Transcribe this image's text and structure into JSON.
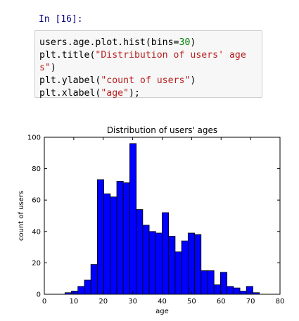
{
  "cell": {
    "prompt": "In [16]:",
    "lines": [
      [
        {
          "t": "users.age.plot.hist(bins=",
          "c": ""
        },
        {
          "t": "30",
          "c": "n"
        },
        {
          "t": ")",
          "c": ""
        }
      ],
      [
        {
          "t": "plt.title(",
          "c": ""
        },
        {
          "t": "\"Distribution of users' age",
          "c": "s"
        }
      ],
      [
        {
          "t": "s\"",
          "c": "s"
        },
        {
          "t": ")",
          "c": ""
        }
      ],
      [
        {
          "t": "plt.ylabel(",
          "c": ""
        },
        {
          "t": "\"count of users\"",
          "c": "s"
        },
        {
          "t": ")",
          "c": ""
        }
      ],
      [
        {
          "t": "plt.xlabel(",
          "c": ""
        },
        {
          "t": "\"age\"",
          "c": "s"
        },
        {
          "t": ");",
          "c": ""
        }
      ]
    ]
  },
  "chart_data": {
    "type": "bar",
    "title": "Distribution of users' ages",
    "xlabel": "age",
    "ylabel": "count of users",
    "xlim": [
      0,
      80
    ],
    "ylim": [
      0,
      100
    ],
    "xticks": [
      0,
      10,
      20,
      30,
      40,
      50,
      60,
      70,
      80
    ],
    "yticks": [
      0,
      20,
      40,
      60,
      80,
      100
    ],
    "bar_color": "#0000ff",
    "edge_color": "#000000",
    "bin_edges": [
      7,
      9.2,
      11.4,
      13.6,
      15.8,
      18,
      20.2,
      22.4,
      24.6,
      26.8,
      29,
      31.2,
      33.4,
      35.6,
      37.8,
      40,
      42.2,
      44.4,
      46.6,
      48.8,
      51,
      53.2,
      55.4,
      57.6,
      59.8,
      62,
      64.2,
      66.4,
      68.6,
      70.8,
      73
    ],
    "values": [
      1,
      2,
      5,
      9,
      19,
      73,
      64,
      62,
      72,
      71,
      96,
      54,
      44,
      40,
      39,
      52,
      37,
      27,
      34,
      39,
      38,
      15,
      15,
      6,
      14,
      5,
      4,
      2,
      5,
      1
    ],
    "grid": false
  }
}
